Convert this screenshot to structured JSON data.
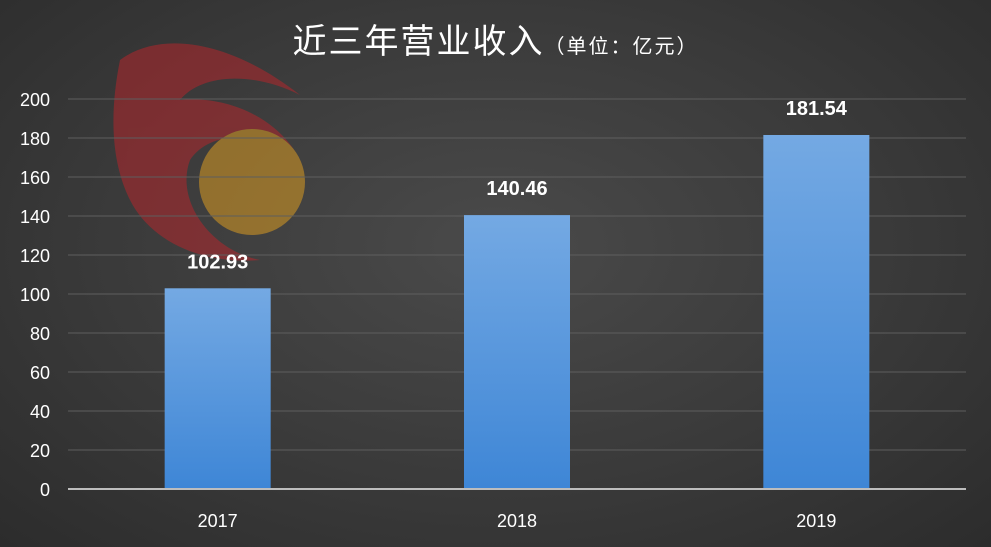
{
  "chart_data": {
    "type": "bar",
    "title": "近三年营业收入",
    "unit_note": "（单位：亿元）",
    "categories": [
      "2017",
      "2018",
      "2019"
    ],
    "values": [
      102.93,
      140.46,
      181.54
    ],
    "data_labels": [
      "102.93",
      "140.46",
      "181.54"
    ],
    "yticks": [
      "0",
      "20",
      "40",
      "60",
      "80",
      "100",
      "120",
      "140",
      "160",
      "180",
      "200"
    ],
    "ylim": [
      0,
      200
    ],
    "grid": true,
    "xlabel": "",
    "ylabel": "",
    "colors": {
      "bar_top": "#74a9e3",
      "bar_bottom": "#3e86d6",
      "grid": "#5e5e5e",
      "axis": "#bdbdbd",
      "label": "#ffffff"
    }
  },
  "watermark": {
    "logo_colors": {
      "flame": "#b2272c",
      "sun": "#d99a22"
    },
    "text_icon": "watermark-text-icon"
  }
}
